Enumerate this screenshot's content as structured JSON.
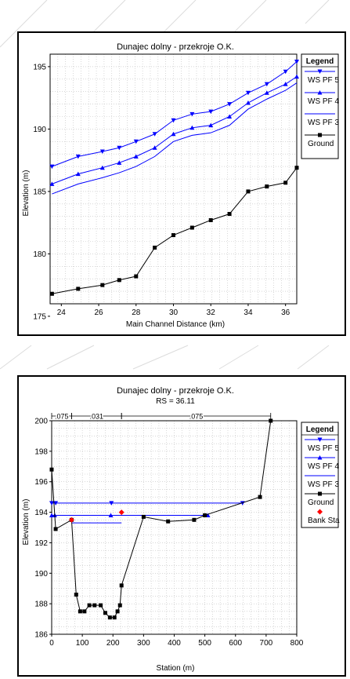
{
  "chart_data": [
    {
      "type": "line",
      "title": "Dunajec dolny - przekroje O.K.",
      "xlabel": "Main Channel Distance (km)",
      "ylabel": "Elevation (m)",
      "xlim": [
        23.4,
        36.6
      ],
      "ylim": [
        176,
        196
      ],
      "x_ticks": [
        "24",
        "26",
        "28",
        "30",
        "32",
        "34",
        "36"
      ],
      "y_ticks": [
        "175",
        "180",
        "185",
        "190",
        "195"
      ],
      "grid": true,
      "legend_position": "right",
      "legend_title": "Legend",
      "series": [
        {
          "name": "WS PF 5",
          "color": "#0000ff",
          "marker": "triangle-down",
          "x": [
            23.5,
            24.9,
            26.2,
            27.1,
            28.0,
            29.0,
            30.0,
            31.0,
            32.0,
            33.0,
            34.0,
            35.0,
            36.0,
            36.6
          ],
          "y": [
            187.0,
            187.8,
            188.2,
            188.5,
            189.0,
            189.6,
            190.7,
            191.2,
            191.4,
            192.0,
            192.9,
            193.6,
            194.6,
            195.4
          ]
        },
        {
          "name": "WS PF 4",
          "color": "#0000ff",
          "marker": "triangle-up",
          "x": [
            23.5,
            24.9,
            26.2,
            27.1,
            28.0,
            29.0,
            30.0,
            31.0,
            32.0,
            33.0,
            34.0,
            35.0,
            36.0,
            36.6
          ],
          "y": [
            185.6,
            186.4,
            186.9,
            187.3,
            187.8,
            188.5,
            189.6,
            190.1,
            190.3,
            191.0,
            192.1,
            192.9,
            193.6,
            194.2
          ]
        },
        {
          "name": "WS PF 3",
          "color": "#0000ff",
          "marker": "none",
          "x": [
            23.5,
            24.9,
            26.2,
            27.1,
            28.0,
            29.0,
            30.0,
            31.0,
            32.0,
            33.0,
            34.0,
            35.0,
            36.0,
            36.6
          ],
          "y": [
            184.8,
            185.6,
            186.1,
            186.5,
            187.0,
            187.8,
            189.0,
            189.5,
            189.7,
            190.3,
            191.6,
            192.4,
            193.1,
            193.7
          ]
        },
        {
          "name": "Ground",
          "color": "#000000",
          "marker": "square",
          "x": [
            23.5,
            24.9,
            26.2,
            27.1,
            28.0,
            29.0,
            30.0,
            31.0,
            32.0,
            33.0,
            34.0,
            35.0,
            36.0,
            36.6
          ],
          "y": [
            176.8,
            177.2,
            177.5,
            177.9,
            178.2,
            180.5,
            181.5,
            182.1,
            182.7,
            183.2,
            185.0,
            185.4,
            185.7,
            186.9
          ]
        }
      ]
    },
    {
      "type": "line",
      "title": "Dunajec dolny - przekroje O.K.",
      "subtitle": "RS = 36.11",
      "xlabel": "Station (m)",
      "ylabel": "Elevation (m)",
      "xlim": [
        0,
        800
      ],
      "ylim": [
        186,
        200
      ],
      "x_ticks": [
        "0",
        "100",
        "200",
        "300",
        "400",
        "500",
        "600",
        "700",
        "800"
      ],
      "y_ticks": [
        "186",
        "188",
        "190",
        "192",
        "194",
        "196",
        "198",
        "200"
      ],
      "grid": true,
      "legend_position": "right",
      "legend_title": "Legend",
      "manning_labels": [
        {
          "text": ".075",
          "x_from": 0,
          "x_to": 65
        },
        {
          "text": ".031",
          "x_from": 65,
          "x_to": 228
        },
        {
          "text": ".075",
          "x_from": 228,
          "x_to": 715
        }
      ],
      "series": [
        {
          "name": "WS PF 5",
          "color": "#0000ff",
          "marker": "triangle-down",
          "x": [
            0,
            13,
            195,
            623
          ],
          "y": [
            194.6,
            194.6,
            194.6,
            194.6
          ]
        },
        {
          "name": "WS PF 4",
          "color": "#0000ff",
          "marker": "triangle-up",
          "x": [
            0,
            10,
            193,
            510
          ],
          "y": [
            193.8,
            193.8,
            193.8,
            193.8
          ]
        },
        {
          "name": "WS PF 3",
          "color": "#0000ff",
          "marker": "none",
          "x": [
            65,
            228
          ],
          "y": [
            193.3,
            193.3
          ]
        },
        {
          "name": "Ground",
          "color": "#000000",
          "marker": "square",
          "x": [
            0,
            13,
            65,
            80,
            93,
            107,
            123,
            140,
            160,
            175,
            190,
            205,
            215,
            223,
            228,
            300,
            380,
            465,
            500,
            680,
            715
          ],
          "y": [
            196.8,
            192.9,
            193.5,
            188.6,
            187.5,
            187.5,
            187.9,
            187.9,
            187.9,
            187.4,
            187.1,
            187.1,
            187.5,
            187.9,
            189.2,
            193.7,
            193.4,
            193.5,
            193.8,
            195.0,
            200.0
          ]
        },
        {
          "name": "Bank Sta",
          "color": "#ff0000",
          "marker": "diamond",
          "x": [
            65,
            228
          ],
          "y": [
            193.5,
            194.0
          ]
        }
      ]
    }
  ]
}
